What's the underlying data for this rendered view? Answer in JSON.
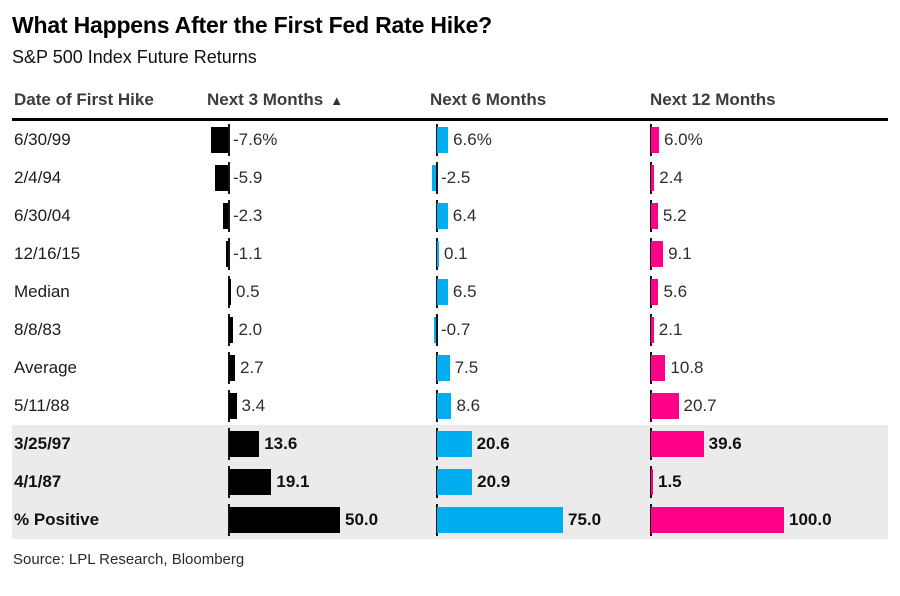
{
  "header": {
    "title": "What Happens After the First Fed Rate Hike?",
    "subtitle": "S&P 500 Index Future Returns"
  },
  "source": "Source: LPL Research, Bloomberg",
  "table": {
    "columns": [
      {
        "label": "Date of First Hike"
      },
      {
        "label": "Next 3 Months",
        "sort_icon": "▲"
      },
      {
        "label": "Next 6 Months"
      },
      {
        "label": "Next 12 Months"
      }
    ]
  },
  "colors": {
    "bar_black": "#000000",
    "bar_blue": "#00aeef",
    "bar_pink": "#ff0088",
    "highlight_bg": "#ebebeb",
    "header_rule": "#000000"
  },
  "chart_data": {
    "type": "bar",
    "orientation": "horizontal",
    "title": "What Happens After the First Fed Rate Hike?",
    "subtitle": "S&P 500 Index Future Returns",
    "legend": "none",
    "categories": [
      "6/30/99",
      "2/4/94",
      "6/30/04",
      "12/16/15",
      "Median",
      "8/8/83",
      "Average",
      "5/11/88",
      "3/25/97",
      "4/1/87",
      "% Positive"
    ],
    "series": [
      {
        "name": "Next 3 Months",
        "color": "#000000",
        "unit": "%",
        "values": [
          -7.6,
          -5.9,
          -2.3,
          -1.1,
          0.5,
          2.0,
          2.7,
          3.4,
          13.6,
          19.1,
          50.0
        ]
      },
      {
        "name": "Next 6 Months",
        "color": "#00aeef",
        "unit": "%",
        "values": [
          6.6,
          -2.5,
          6.4,
          0.1,
          6.5,
          -0.7,
          7.5,
          8.6,
          20.6,
          20.9,
          75.0
        ]
      },
      {
        "name": "Next 12 Months",
        "color": "#ff0088",
        "unit": "%",
        "values": [
          6.0,
          2.4,
          5.2,
          9.1,
          5.6,
          2.1,
          10.8,
          20.7,
          39.6,
          1.5,
          100.0
        ]
      }
    ],
    "highlight_rows": [
      "3/25/97",
      "4/1/87",
      "% Positive"
    ],
    "sorted_by": "Next 3 Months ascending"
  },
  "rows": [
    {
      "date": "6/30/99",
      "labels": [
        "-7.6%",
        "6.6%",
        "6.0%"
      ],
      "values": [
        -7.6,
        6.6,
        6.0
      ],
      "highlight": false
    },
    {
      "date": "2/4/94",
      "labels": [
        "-5.9",
        "-2.5",
        "2.4"
      ],
      "values": [
        -5.9,
        -2.5,
        2.4
      ],
      "highlight": false
    },
    {
      "date": "6/30/04",
      "labels": [
        "-2.3",
        "6.4",
        "5.2"
      ],
      "values": [
        -2.3,
        6.4,
        5.2
      ],
      "highlight": false
    },
    {
      "date": "12/16/15",
      "labels": [
        "-1.1",
        "0.1",
        "9.1"
      ],
      "values": [
        -1.1,
        0.1,
        9.1
      ],
      "highlight": false
    },
    {
      "date": "Median",
      "labels": [
        "0.5",
        "6.5",
        "5.6"
      ],
      "values": [
        0.5,
        6.5,
        5.6
      ],
      "highlight": false
    },
    {
      "date": "8/8/83",
      "labels": [
        "2.0",
        "-0.7",
        "2.1"
      ],
      "values": [
        2.0,
        -0.7,
        2.1
      ],
      "highlight": false
    },
    {
      "date": "Average",
      "labels": [
        "2.7",
        "7.5",
        "10.8"
      ],
      "values": [
        2.7,
        7.5,
        10.8
      ],
      "highlight": false
    },
    {
      "date": "5/11/88",
      "labels": [
        "3.4",
        "8.6",
        "20.7"
      ],
      "values": [
        3.4,
        8.6,
        20.7
      ],
      "highlight": false
    },
    {
      "date": "3/25/97",
      "labels": [
        "13.6",
        "20.6",
        "39.6"
      ],
      "values": [
        13.6,
        20.6,
        39.6
      ],
      "highlight": true
    },
    {
      "date": "4/1/87",
      "labels": [
        "19.1",
        "20.9",
        "1.5"
      ],
      "values": [
        19.1,
        20.9,
        1.5
      ],
      "highlight": true
    },
    {
      "date": "% Positive",
      "labels": [
        "50.0",
        "75.0",
        "100.0"
      ],
      "values": [
        50.0,
        75.0,
        100.0
      ],
      "highlight": true
    }
  ]
}
